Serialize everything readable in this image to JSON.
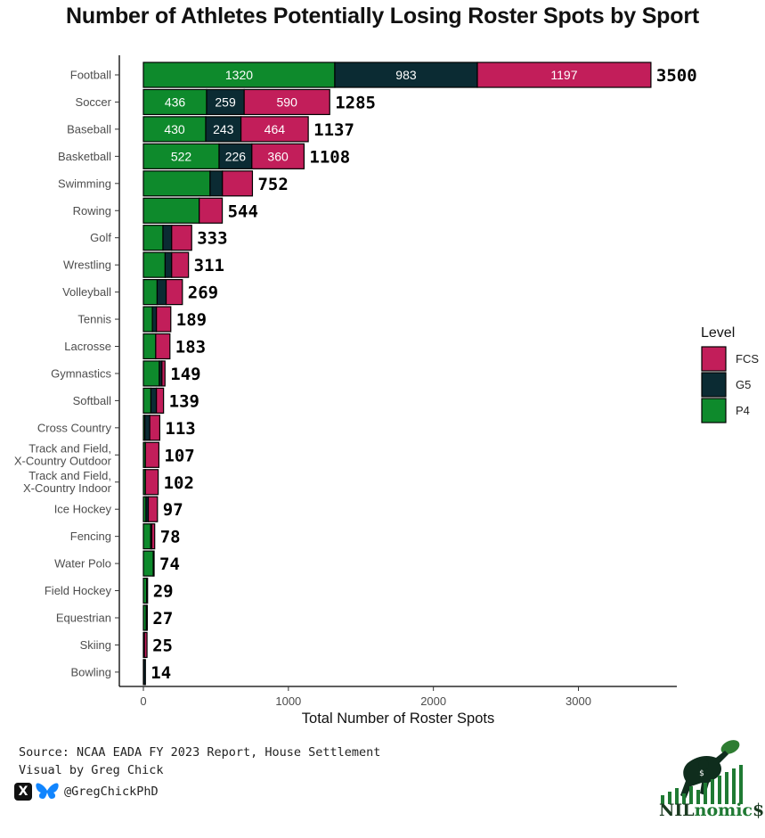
{
  "chart_data": {
    "type": "bar",
    "orientation": "horizontal",
    "stacked": true,
    "title": "Number of Athletes Potentially Losing Roster Spots by Sport",
    "xlabel": "Total Number of Roster Spots",
    "ylabel": "",
    "xlim": [
      0,
      3700
    ],
    "xticks": [
      0,
      1000,
      2000,
      3000
    ],
    "grid": false,
    "legend": {
      "title": "Level",
      "position": "right",
      "entries": [
        "FCS",
        "G5",
        "P4"
      ]
    },
    "categories": [
      "Football",
      "Soccer",
      "Baseball",
      "Basketball",
      "Swimming",
      "Rowing",
      "Golf",
      "Wrestling",
      "Volleyball",
      "Tennis",
      "Lacrosse",
      "Gymnastics",
      "Softball",
      "Cross Country",
      "Track and Field,\nX-Country Outdoor",
      "Track and Field,\nX-Country Indoor",
      "Ice Hockey",
      "Fencing",
      "Water Polo",
      "Field Hockey",
      "Equestrian",
      "Skiing",
      "Bowling"
    ],
    "series": [
      {
        "name": "P4",
        "color": "#0e8a2c",
        "values": [
          1320,
          436,
          430,
          522,
          460,
          385,
          135,
          150,
          95,
          62,
          85,
          110,
          52,
          10,
          14,
          14,
          18,
          50,
          68,
          22,
          20,
          4,
          2
        ]
      },
      {
        "name": "G5",
        "color": "#0b2b33",
        "values": [
          983,
          259,
          243,
          226,
          85,
          0,
          60,
          45,
          62,
          28,
          0,
          18,
          38,
          34,
          0,
          0,
          16,
          8,
          6,
          7,
          7,
          3,
          12
        ]
      },
      {
        "name": "FCS",
        "color": "#c21e5a",
        "values": [
          1197,
          590,
          464,
          360,
          207,
          159,
          138,
          116,
          112,
          99,
          98,
          21,
          49,
          69,
          93,
          88,
          63,
          20,
          0,
          0,
          0,
          18,
          0
        ]
      }
    ],
    "segment_labels": {
      "Football": [
        "1320",
        "983",
        "1197"
      ],
      "Soccer": [
        "436",
        "259",
        "590"
      ],
      "Baseball": [
        "430",
        "243",
        "464"
      ],
      "Basketball": [
        "522",
        "226",
        "360"
      ]
    },
    "totals": [
      3500,
      1285,
      1137,
      1108,
      752,
      544,
      333,
      311,
      269,
      189,
      183,
      149,
      139,
      113,
      107,
      102,
      97,
      78,
      74,
      29,
      27,
      25,
      14
    ]
  },
  "footer": {
    "source": "Source: NCAA EADA FY 2023 Report, House Settlement",
    "credit": "Visual by Greg Chick",
    "handle": "@GregChickPhD",
    "icons": [
      "x-logo-icon",
      "butterfly-icon"
    ]
  },
  "brand": {
    "part1": "NIL",
    "part2": "nomic",
    "part3": "$"
  }
}
